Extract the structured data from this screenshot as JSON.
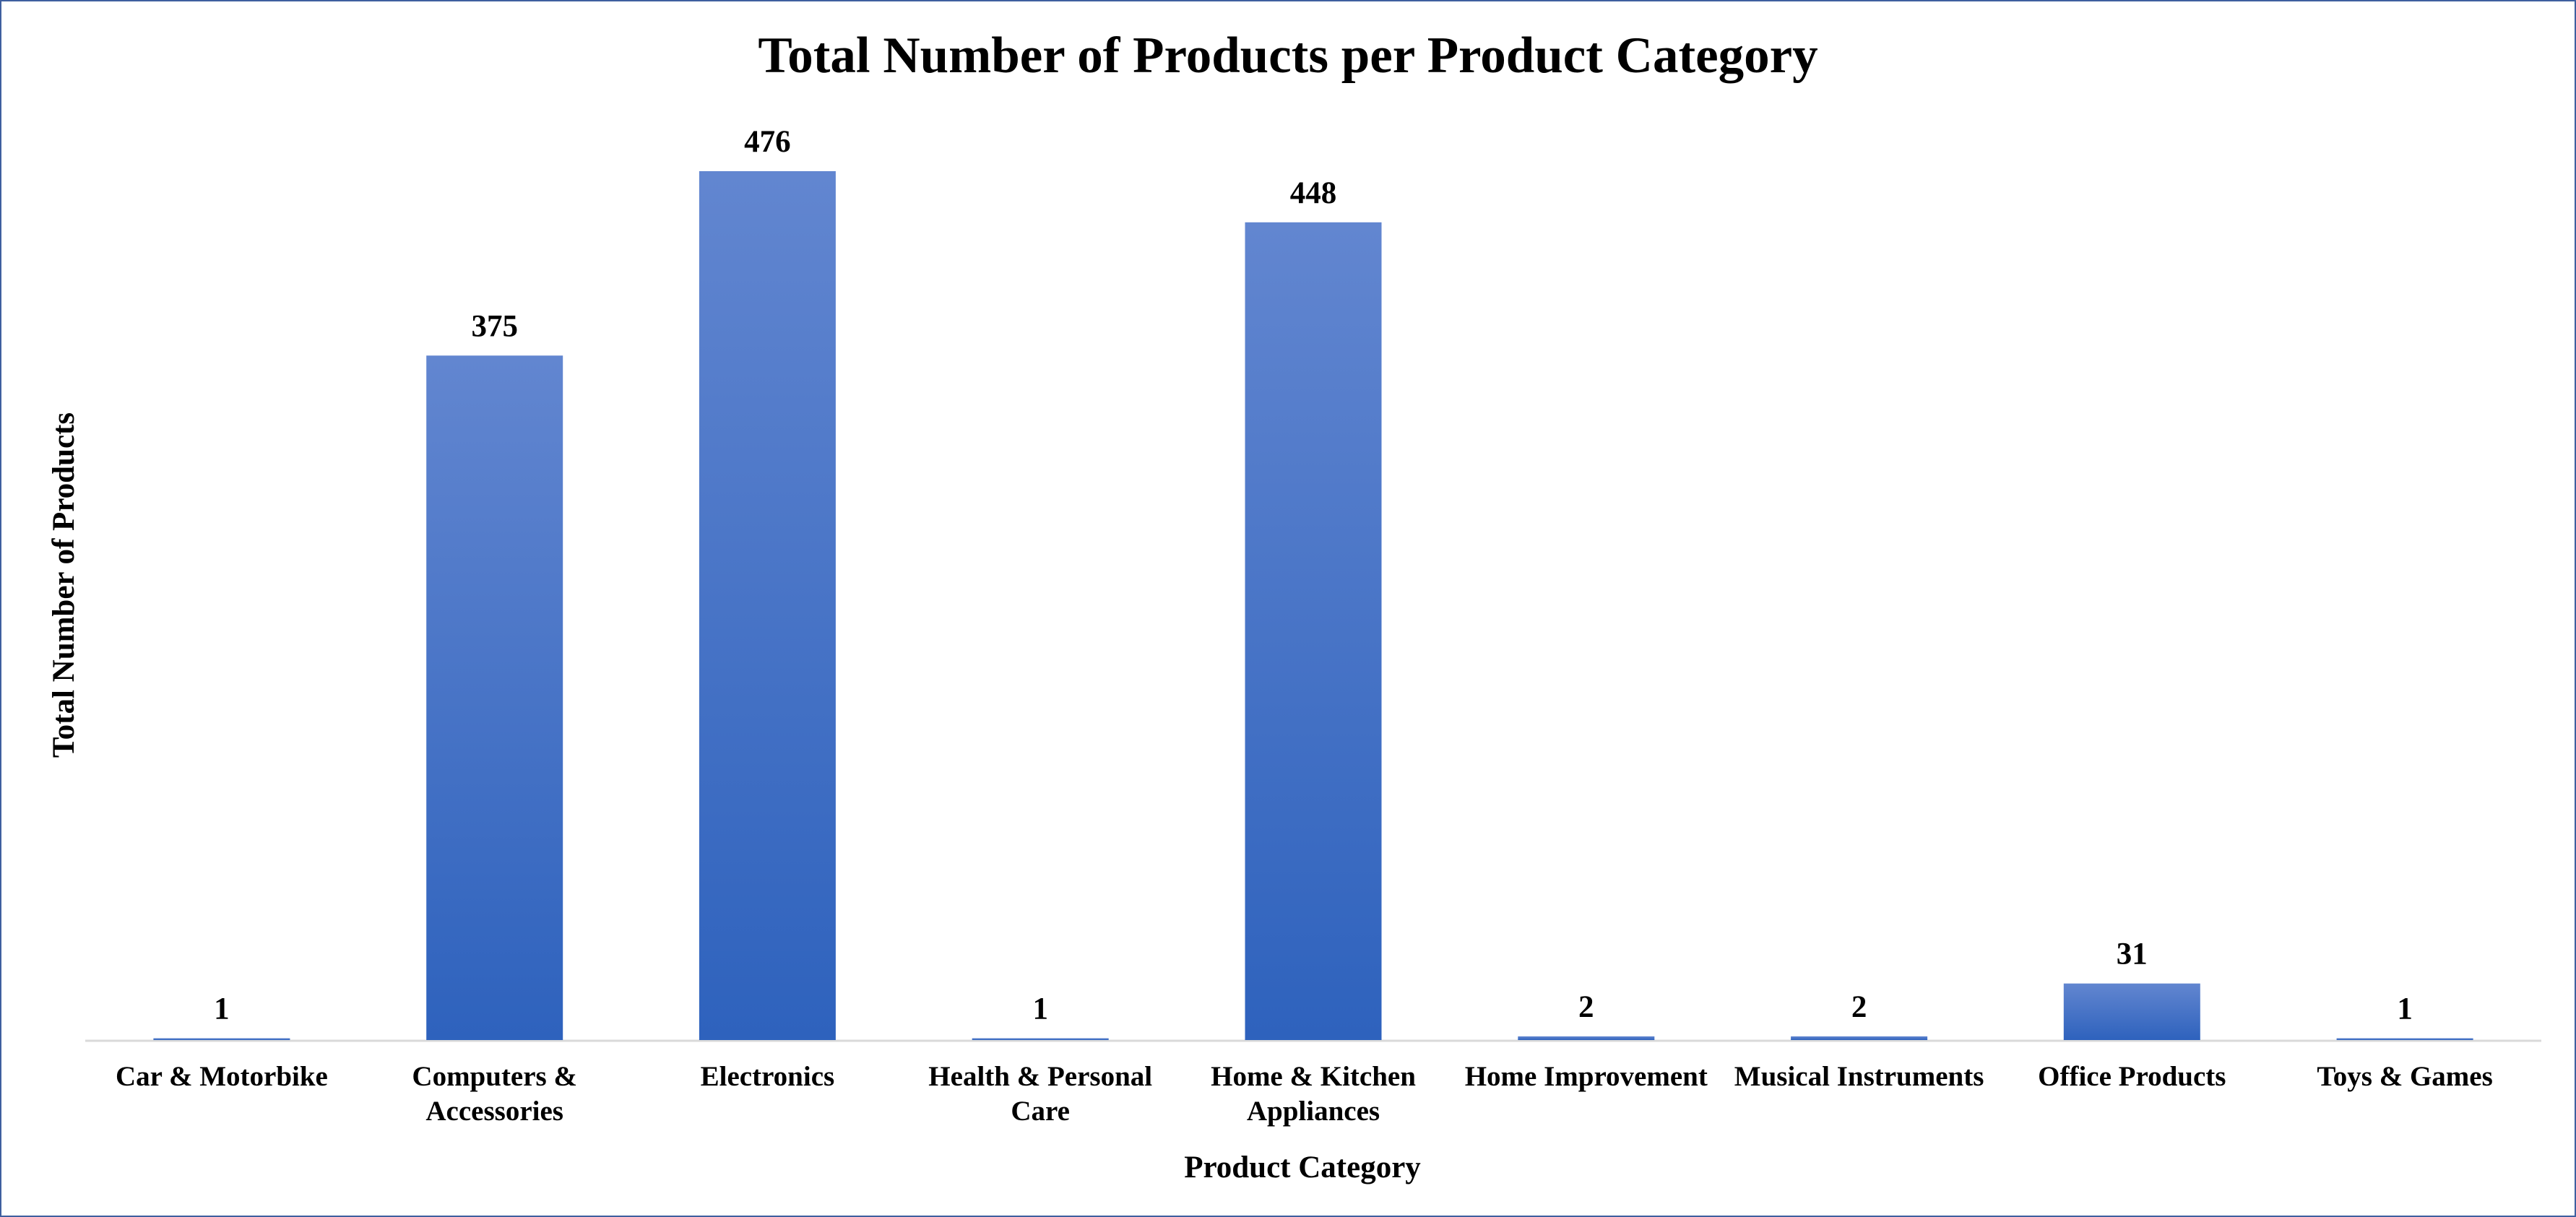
{
  "chart_data": {
    "type": "bar",
    "title": "Total Number of Products per Product Category",
    "xlabel": "Product Category",
    "ylabel": "Total Number of Products",
    "categories": [
      "Car & Motorbike",
      "Computers & Accessories",
      "Electronics",
      "Health & Personal Care",
      "Home & Kitchen Appliances",
      "Home Improvement",
      "Musical Instruments",
      "Office Products",
      "Toys & Games"
    ],
    "category_lines": [
      [
        "Car & Motorbike"
      ],
      [
        "Computers &",
        "Accessories"
      ],
      [
        "Electronics"
      ],
      [
        "Health & Personal",
        "Care"
      ],
      [
        "Home & Kitchen",
        "Appliances"
      ],
      [
        "Home Improvement"
      ],
      [
        "Musical Instruments"
      ],
      [
        "Office Products"
      ],
      [
        "Toys & Games"
      ]
    ],
    "values": [
      1,
      375,
      476,
      1,
      448,
      2,
      2,
      31,
      1
    ],
    "data_labels": true,
    "ylim": [
      0,
      476
    ],
    "grid": false,
    "legend": "none",
    "bar_color_top": "#6286d0",
    "bar_color_bottom": "#2e62bd",
    "axis_color": "#d9d9d9",
    "border_color": "#3f5f9f"
  }
}
